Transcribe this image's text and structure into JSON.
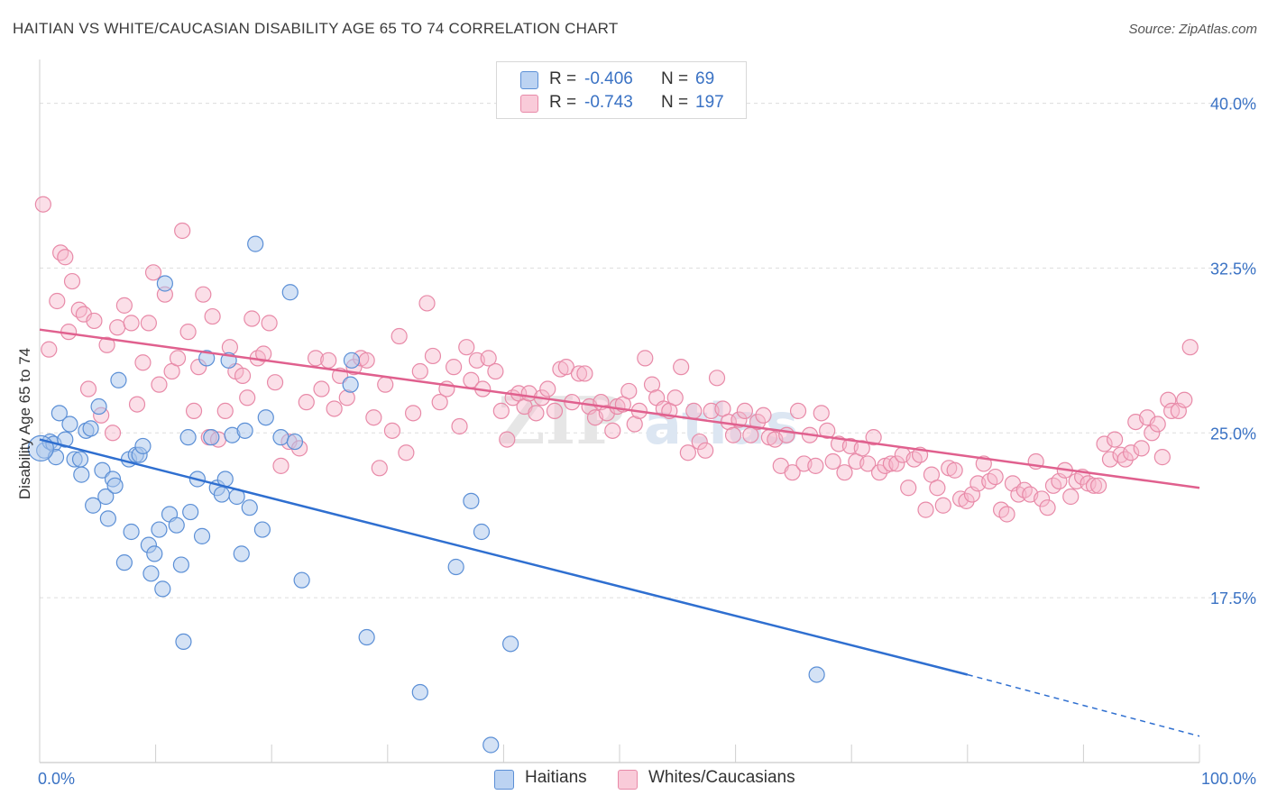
{
  "header": {
    "title": "HAITIAN VS WHITE/CAUCASIAN DISABILITY AGE 65 TO 74 CORRELATION CHART",
    "source": "Source: ZipAtlas.com"
  },
  "legend_top": {
    "rows": [
      {
        "r_label": "R =",
        "r_value": "-0.406",
        "n_label": "N =",
        "n_value": "69"
      },
      {
        "r_label": "R =",
        "r_value": "-0.743",
        "n_label": "N =",
        "n_value": "197"
      }
    ]
  },
  "legend_bottom": {
    "items": [
      {
        "label": "Haitians"
      },
      {
        "label": "Whites/Caucasians"
      }
    ]
  },
  "watermark": "ZIPatlas",
  "colors": {
    "blue_fill": "#a9c6ec",
    "blue_stroke": "#5b8fd6",
    "blue_line": "#2f6fd0",
    "pink_fill": "#f6b8cc",
    "pink_stroke": "#e88aa8",
    "pink_line": "#e0608e",
    "tick_label": "#3a72c4",
    "grid": "#dddddd"
  },
  "chart_data": {
    "type": "scatter",
    "title": "HAITIAN VS WHITE/CAUCASIAN DISABILITY AGE 65 TO 74 CORRELATION CHART",
    "xlabel": "",
    "ylabel": "Disability Age 65 to 74",
    "xlim": [
      0,
      100
    ],
    "ylim": [
      10,
      41.5
    ],
    "x_tick_labels": [
      "0.0%",
      "100.0%"
    ],
    "y_ticks": [
      17.5,
      25.0,
      32.5,
      40.0
    ],
    "y_tick_labels": [
      "17.5%",
      "25.0%",
      "32.5%",
      "40.0%"
    ],
    "grid": true,
    "legend_position": "top-center",
    "series": [
      {
        "name": "Haitians",
        "r": -0.406,
        "n": 69,
        "trend": {
          "x0": 0,
          "y0": 24.7,
          "x1": 80,
          "y1": 14.0,
          "dashed_to_x": 100,
          "dashed_to_y": 11.2
        },
        "points": [
          [
            0.4,
            24.2
          ],
          [
            0.9,
            24.6
          ],
          [
            1.2,
            24.5
          ],
          [
            1.4,
            23.9
          ],
          [
            1.7,
            25.9
          ],
          [
            2.2,
            24.7
          ],
          [
            2.6,
            25.4
          ],
          [
            3.0,
            23.8
          ],
          [
            3.5,
            23.8
          ],
          [
            3.6,
            23.1
          ],
          [
            4.0,
            25.1
          ],
          [
            4.4,
            25.2
          ],
          [
            4.6,
            21.7
          ],
          [
            5.1,
            26.2
          ],
          [
            5.4,
            23.3
          ],
          [
            5.7,
            22.1
          ],
          [
            5.9,
            21.1
          ],
          [
            6.3,
            22.9
          ],
          [
            6.5,
            22.6
          ],
          [
            6.8,
            27.4
          ],
          [
            7.3,
            19.1
          ],
          [
            7.7,
            23.8
          ],
          [
            7.9,
            20.5
          ],
          [
            8.3,
            24.0
          ],
          [
            8.6,
            24.0
          ],
          [
            8.9,
            24.4
          ],
          [
            9.4,
            19.9
          ],
          [
            9.6,
            18.6
          ],
          [
            9.9,
            19.5
          ],
          [
            10.3,
            20.6
          ],
          [
            10.6,
            17.9
          ],
          [
            10.8,
            31.8
          ],
          [
            11.2,
            21.3
          ],
          [
            11.8,
            20.8
          ],
          [
            12.2,
            19.0
          ],
          [
            12.4,
            15.5
          ],
          [
            12.8,
            24.8
          ],
          [
            13.0,
            21.4
          ],
          [
            13.6,
            22.9
          ],
          [
            14.0,
            20.3
          ],
          [
            14.4,
            28.4
          ],
          [
            14.8,
            24.8
          ],
          [
            15.3,
            22.5
          ],
          [
            15.7,
            22.2
          ],
          [
            16.0,
            22.9
          ],
          [
            16.3,
            28.3
          ],
          [
            16.6,
            24.9
          ],
          [
            17.0,
            22.1
          ],
          [
            17.4,
            19.5
          ],
          [
            17.7,
            25.1
          ],
          [
            18.1,
            21.6
          ],
          [
            18.6,
            33.6
          ],
          [
            19.2,
            20.6
          ],
          [
            19.5,
            25.7
          ],
          [
            20.8,
            24.8
          ],
          [
            21.6,
            31.4
          ],
          [
            22.0,
            24.6
          ],
          [
            22.6,
            18.3
          ],
          [
            26.8,
            27.2
          ],
          [
            26.9,
            28.3
          ],
          [
            28.2,
            15.7
          ],
          [
            32.8,
            13.2
          ],
          [
            35.9,
            18.9
          ],
          [
            37.2,
            21.9
          ],
          [
            38.1,
            20.5
          ],
          [
            38.9,
            10.8
          ],
          [
            40.6,
            15.4
          ],
          [
            67.0,
            14.0
          ],
          [
            0.1,
            24.3
          ]
        ]
      },
      {
        "name": "Whites/Caucasians",
        "r": -0.743,
        "n": 197,
        "trend": {
          "x0": 0,
          "y0": 29.7,
          "x1": 100,
          "y1": 22.5
        },
        "points": [
          [
            0.3,
            35.4
          ],
          [
            1.8,
            33.2
          ],
          [
            2.2,
            33.0
          ],
          [
            2.8,
            31.9
          ],
          [
            3.4,
            30.6
          ],
          [
            3.8,
            30.4
          ],
          [
            4.2,
            27.0
          ],
          [
            4.7,
            30.1
          ],
          [
            5.3,
            25.8
          ],
          [
            5.8,
            29.0
          ],
          [
            6.3,
            25.0
          ],
          [
            6.7,
            29.8
          ],
          [
            7.3,
            30.8
          ],
          [
            7.9,
            30.0
          ],
          [
            8.4,
            26.3
          ],
          [
            8.9,
            28.2
          ],
          [
            9.4,
            30.0
          ],
          [
            9.8,
            32.3
          ],
          [
            10.3,
            27.2
          ],
          [
            10.8,
            31.3
          ],
          [
            11.4,
            27.8
          ],
          [
            11.9,
            28.4
          ],
          [
            12.3,
            34.2
          ],
          [
            12.8,
            29.6
          ],
          [
            13.3,
            26.0
          ],
          [
            13.7,
            28.0
          ],
          [
            14.1,
            31.3
          ],
          [
            14.6,
            24.8
          ],
          [
            14.9,
            30.3
          ],
          [
            15.4,
            24.7
          ],
          [
            16.0,
            26.0
          ],
          [
            16.4,
            28.9
          ],
          [
            16.9,
            27.8
          ],
          [
            17.5,
            27.6
          ],
          [
            17.9,
            26.6
          ],
          [
            18.3,
            30.2
          ],
          [
            18.8,
            28.4
          ],
          [
            19.3,
            28.6
          ],
          [
            19.8,
            30.0
          ],
          [
            20.3,
            27.3
          ],
          [
            20.8,
            23.5
          ],
          [
            21.5,
            24.6
          ],
          [
            22.4,
            24.3
          ],
          [
            23.0,
            26.4
          ],
          [
            23.8,
            28.4
          ],
          [
            24.3,
            27.0
          ],
          [
            24.9,
            28.3
          ],
          [
            25.4,
            26.1
          ],
          [
            25.9,
            27.6
          ],
          [
            26.5,
            26.6
          ],
          [
            27.1,
            28.0
          ],
          [
            27.7,
            28.4
          ],
          [
            28.2,
            28.3
          ],
          [
            28.8,
            25.7
          ],
          [
            29.3,
            23.4
          ],
          [
            29.8,
            27.2
          ],
          [
            30.4,
            25.1
          ],
          [
            31.0,
            29.4
          ],
          [
            31.6,
            24.1
          ],
          [
            32.2,
            25.9
          ],
          [
            32.8,
            27.8
          ],
          [
            33.4,
            30.9
          ],
          [
            33.9,
            28.5
          ],
          [
            34.5,
            26.4
          ],
          [
            35.1,
            27.0
          ],
          [
            35.7,
            28.0
          ],
          [
            36.2,
            25.3
          ],
          [
            36.8,
            28.9
          ],
          [
            37.2,
            27.4
          ],
          [
            37.7,
            28.3
          ],
          [
            38.2,
            27.0
          ],
          [
            38.7,
            28.4
          ],
          [
            39.3,
            27.8
          ],
          [
            39.8,
            26.0
          ],
          [
            40.3,
            24.7
          ],
          [
            40.8,
            26.6
          ],
          [
            41.3,
            26.8
          ],
          [
            41.8,
            26.2
          ],
          [
            42.2,
            26.8
          ],
          [
            42.8,
            25.9
          ],
          [
            43.3,
            26.6
          ],
          [
            43.8,
            27.0
          ],
          [
            44.4,
            26.0
          ],
          [
            44.9,
            27.9
          ],
          [
            45.4,
            28.0
          ],
          [
            45.9,
            26.4
          ],
          [
            46.5,
            27.7
          ],
          [
            47.0,
            27.7
          ],
          [
            47.4,
            26.2
          ],
          [
            47.9,
            25.7
          ],
          [
            48.4,
            26.4
          ],
          [
            48.9,
            25.9
          ],
          [
            49.4,
            25.1
          ],
          [
            49.8,
            26.2
          ],
          [
            50.3,
            26.3
          ],
          [
            50.8,
            26.9
          ],
          [
            51.3,
            25.4
          ],
          [
            51.7,
            26.0
          ],
          [
            52.2,
            28.4
          ],
          [
            52.8,
            27.2
          ],
          [
            53.2,
            26.6
          ],
          [
            53.8,
            26.1
          ],
          [
            54.3,
            26.0
          ],
          [
            54.8,
            26.6
          ],
          [
            55.3,
            28.0
          ],
          [
            55.9,
            24.1
          ],
          [
            56.4,
            26.0
          ],
          [
            56.9,
            24.6
          ],
          [
            57.4,
            24.2
          ],
          [
            57.9,
            26.0
          ],
          [
            58.4,
            27.5
          ],
          [
            58.9,
            26.1
          ],
          [
            59.4,
            25.5
          ],
          [
            59.8,
            24.9
          ],
          [
            60.3,
            25.6
          ],
          [
            60.8,
            26.0
          ],
          [
            61.3,
            24.9
          ],
          [
            61.9,
            25.5
          ],
          [
            62.4,
            25.8
          ],
          [
            62.9,
            24.8
          ],
          [
            63.4,
            24.7
          ],
          [
            63.9,
            23.5
          ],
          [
            64.4,
            24.9
          ],
          [
            64.9,
            23.2
          ],
          [
            65.4,
            26.0
          ],
          [
            65.9,
            23.6
          ],
          [
            66.4,
            24.9
          ],
          [
            66.9,
            23.5
          ],
          [
            67.4,
            25.9
          ],
          [
            67.9,
            25.1
          ],
          [
            68.4,
            23.7
          ],
          [
            68.9,
            24.5
          ],
          [
            69.4,
            23.2
          ],
          [
            69.9,
            24.4
          ],
          [
            70.4,
            23.7
          ],
          [
            70.9,
            24.3
          ],
          [
            71.4,
            23.6
          ],
          [
            71.9,
            24.8
          ],
          [
            72.4,
            23.2
          ],
          [
            72.9,
            23.5
          ],
          [
            73.4,
            23.6
          ],
          [
            73.9,
            23.6
          ],
          [
            74.4,
            24.0
          ],
          [
            74.9,
            22.5
          ],
          [
            75.4,
            23.8
          ],
          [
            75.9,
            24.0
          ],
          [
            76.4,
            21.5
          ],
          [
            76.9,
            23.1
          ],
          [
            77.4,
            22.5
          ],
          [
            77.9,
            21.7
          ],
          [
            78.4,
            23.4
          ],
          [
            78.9,
            23.3
          ],
          [
            79.4,
            22.0
          ],
          [
            79.9,
            21.9
          ],
          [
            80.4,
            22.2
          ],
          [
            80.9,
            22.7
          ],
          [
            81.4,
            23.6
          ],
          [
            81.9,
            22.8
          ],
          [
            82.4,
            23.0
          ],
          [
            82.9,
            21.5
          ],
          [
            83.4,
            21.3
          ],
          [
            83.9,
            22.7
          ],
          [
            84.4,
            22.2
          ],
          [
            84.9,
            22.4
          ],
          [
            85.4,
            22.2
          ],
          [
            85.9,
            23.7
          ],
          [
            86.4,
            22.0
          ],
          [
            86.9,
            21.6
          ],
          [
            87.4,
            22.6
          ],
          [
            87.9,
            22.8
          ],
          [
            88.4,
            23.3
          ],
          [
            88.9,
            22.1
          ],
          [
            89.4,
            22.8
          ],
          [
            89.9,
            23.0
          ],
          [
            90.4,
            22.7
          ],
          [
            90.9,
            22.6
          ],
          [
            91.3,
            22.6
          ],
          [
            91.8,
            24.5
          ],
          [
            92.3,
            23.8
          ],
          [
            92.7,
            24.7
          ],
          [
            93.2,
            24.0
          ],
          [
            93.6,
            23.8
          ],
          [
            94.1,
            24.1
          ],
          [
            94.5,
            25.5
          ],
          [
            95.0,
            24.3
          ],
          [
            95.5,
            25.7
          ],
          [
            95.9,
            25.0
          ],
          [
            96.4,
            25.4
          ],
          [
            96.8,
            23.9
          ],
          [
            97.3,
            26.5
          ],
          [
            97.6,
            26.0
          ],
          [
            98.2,
            26.0
          ],
          [
            98.7,
            26.5
          ],
          [
            99.2,
            28.9
          ],
          [
            0.8,
            28.8
          ],
          [
            1.5,
            31.0
          ],
          [
            2.5,
            29.6
          ]
        ]
      }
    ]
  }
}
